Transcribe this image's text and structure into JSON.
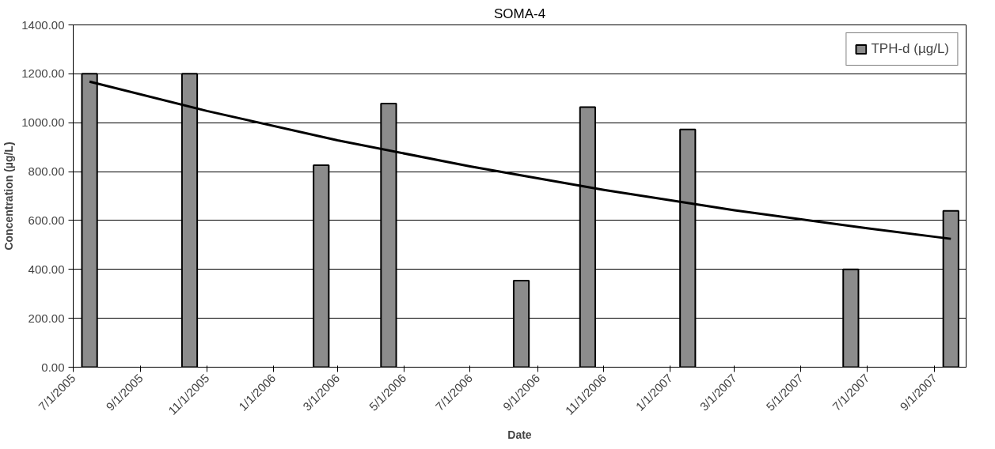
{
  "chart_data": {
    "type": "bar",
    "title": "SOMA-4",
    "xlabel": "Date",
    "ylabel": "Concentration (µg/L)",
    "x": [
      "2005-07-16",
      "2005-10-16",
      "2006-02-14",
      "2006-04-17",
      "2006-08-17",
      "2006-10-17",
      "2007-01-17",
      "2007-06-16",
      "2007-09-16"
    ],
    "series": [
      {
        "name": "TPH-d (µg/L)",
        "color": "#8c8c8c",
        "values": [
          1200,
          1200,
          826,
          1078,
          354,
          1064,
          972,
          400,
          639
        ]
      },
      {
        "type": "line",
        "color": "#000000",
        "x": [
          "2005-07-16",
          "2005-11-01",
          "2006-03-01",
          "2006-07-01",
          "2006-11-01",
          "2007-03-01",
          "2007-07-01",
          "2007-09-16"
        ],
        "values": [
          1168,
          1048,
          928,
          821,
          725,
          642,
          568,
          525
        ]
      }
    ],
    "xlim": [
      "2005-07-01",
      "2007-09-30"
    ],
    "xticks": [
      {
        "value": "2005-07-01",
        "label": "7/1/2005"
      },
      {
        "value": "2005-09-01",
        "label": "9/1/2005"
      },
      {
        "value": "2005-11-01",
        "label": "11/1/2005"
      },
      {
        "value": "2006-01-01",
        "label": "1/1/2006"
      },
      {
        "value": "2006-03-01",
        "label": "3/1/2006"
      },
      {
        "value": "2006-05-01",
        "label": "5/1/2006"
      },
      {
        "value": "2006-07-01",
        "label": "7/1/2006"
      },
      {
        "value": "2006-09-01",
        "label": "9/1/2006"
      },
      {
        "value": "2006-11-01",
        "label": "11/1/2006"
      },
      {
        "value": "2007-01-01",
        "label": "1/1/2007"
      },
      {
        "value": "2007-03-01",
        "label": "3/1/2007"
      },
      {
        "value": "2007-05-01",
        "label": "5/1/2007"
      },
      {
        "value": "2007-07-01",
        "label": "7/1/2007"
      },
      {
        "value": "2007-09-01",
        "label": "9/1/2007"
      }
    ],
    "ylim": [
      0,
      1400
    ],
    "yticks": [
      {
        "value": 0,
        "label": "0.00"
      },
      {
        "value": 200,
        "label": "200.00"
      },
      {
        "value": 400,
        "label": "400.00"
      },
      {
        "value": 600,
        "label": "600.00"
      },
      {
        "value": 800,
        "label": "800.00"
      },
      {
        "value": 1000,
        "label": "1000.00"
      },
      {
        "value": 1200,
        "label": "1200.00"
      },
      {
        "value": 1400,
        "label": "1400.00"
      }
    ],
    "grid": "y",
    "legend": "top right"
  }
}
